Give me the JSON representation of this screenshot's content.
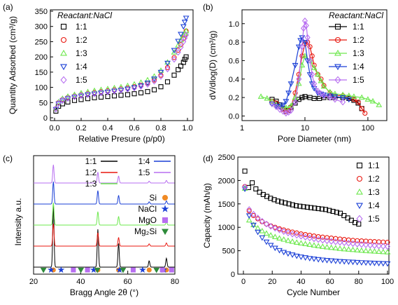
{
  "chart_data": [
    {
      "panel_label": "(a)",
      "type": "scatter",
      "xlabel": "Relative Presure (p/p0)",
      "ylabel": "Quantity Adsorbed (cm³/g)",
      "xlim": [
        0,
        1.0
      ],
      "ylim": [
        0,
        350
      ],
      "xticks": [
        "0.0",
        "0.2",
        "0.4",
        "0.6",
        "0.8",
        "1.0"
      ],
      "yticks": [
        "0",
        "50",
        "100",
        "150",
        "200",
        "250",
        "300",
        "350"
      ],
      "legend_title": "Reactant:NaCl",
      "legend_position": "top-left",
      "series": [
        {
          "name": "1:1",
          "color": "#000000",
          "marker": "square",
          "x": [
            0.01,
            0.03,
            0.06,
            0.1,
            0.15,
            0.2,
            0.25,
            0.3,
            0.35,
            0.4,
            0.45,
            0.5,
            0.55,
            0.6,
            0.65,
            0.7,
            0.75,
            0.8,
            0.85,
            0.9,
            0.93,
            0.95,
            0.97,
            0.98,
            0.99
          ],
          "y": [
            22,
            38,
            46,
            52,
            57,
            60,
            63,
            66,
            68,
            70,
            72,
            74,
            76,
            79,
            82,
            86,
            92,
            102,
            118,
            140,
            158,
            170,
            182,
            192,
            200
          ]
        },
        {
          "name": "1:2",
          "color": "#e8170f",
          "marker": "circle",
          "x": [
            0.01,
            0.03,
            0.06,
            0.1,
            0.15,
            0.2,
            0.25,
            0.3,
            0.35,
            0.4,
            0.45,
            0.5,
            0.55,
            0.6,
            0.65,
            0.7,
            0.75,
            0.8,
            0.85,
            0.9,
            0.93,
            0.95,
            0.97,
            0.98,
            0.99
          ],
          "y": [
            30,
            50,
            60,
            67,
            72,
            76,
            80,
            83,
            86,
            89,
            92,
            95,
            98,
            102,
            107,
            114,
            124,
            140,
            165,
            198,
            222,
            240,
            260,
            272,
            285
          ]
        },
        {
          "name": "1:3",
          "color": "#6ee84e",
          "marker": "triangle-up",
          "x": [
            0.01,
            0.03,
            0.06,
            0.1,
            0.15,
            0.2,
            0.25,
            0.3,
            0.35,
            0.4,
            0.45,
            0.5,
            0.55,
            0.6,
            0.65,
            0.7,
            0.75,
            0.8,
            0.85,
            0.9,
            0.93,
            0.95,
            0.97,
            0.98,
            0.99
          ],
          "y": [
            32,
            52,
            63,
            70,
            76,
            81,
            85,
            89,
            92,
            95,
            98,
            101,
            105,
            110,
            116,
            124,
            136,
            155,
            182,
            215,
            238,
            255,
            270,
            278,
            285
          ]
        },
        {
          "name": "1:4",
          "color": "#1a3fd6",
          "marker": "triangle-down",
          "x": [
            0.01,
            0.03,
            0.06,
            0.1,
            0.15,
            0.2,
            0.25,
            0.3,
            0.35,
            0.4,
            0.45,
            0.5,
            0.55,
            0.6,
            0.65,
            0.7,
            0.75,
            0.8,
            0.85,
            0.9,
            0.93,
            0.95,
            0.97,
            0.98,
            0.99
          ],
          "y": [
            28,
            46,
            56,
            63,
            68,
            72,
            76,
            79,
            82,
            85,
            88,
            91,
            95,
            100,
            106,
            115,
            128,
            150,
            180,
            222,
            252,
            275,
            300,
            315,
            328
          ]
        },
        {
          "name": "1:5",
          "color": "#b76ef0",
          "marker": "diamond",
          "x": [
            0.01,
            0.03,
            0.06,
            0.1,
            0.15,
            0.2,
            0.25,
            0.3,
            0.35,
            0.4,
            0.45,
            0.5,
            0.55,
            0.6,
            0.65,
            0.7,
            0.75,
            0.8,
            0.85,
            0.9,
            0.93,
            0.95,
            0.97,
            0.98,
            0.99
          ],
          "y": [
            30,
            48,
            58,
            64,
            69,
            73,
            76,
            79,
            82,
            85,
            88,
            91,
            94,
            98,
            103,
            110,
            120,
            136,
            160,
            192,
            215,
            232,
            250,
            262,
            272
          ]
        }
      ]
    },
    {
      "panel_label": "(b)",
      "type": "line",
      "xscale": "log",
      "xlabel": "Pore Diameter (nm)",
      "ylabel": "dV/dlog(D) (cm³/g)",
      "xlim": [
        1,
        200
      ],
      "ylim": [
        -0.05,
        1.15
      ],
      "xticks": [
        "1",
        "10",
        "100"
      ],
      "yticks": [
        "0.0",
        "0.2",
        "0.4",
        "0.6",
        "0.8",
        "1.0"
      ],
      "legend_title": "Reactant:NaCl",
      "legend_position": "top-right",
      "series": [
        {
          "name": "1:1",
          "color": "#000000",
          "marker": "square",
          "x": [
            3,
            3.5,
            4,
            4.5,
            5,
            5.5,
            6,
            7,
            8,
            9,
            10,
            12,
            14,
            17,
            20,
            25,
            30,
            40,
            50,
            60,
            70,
            80
          ],
          "y": [
            0.18,
            0.16,
            0.12,
            0.08,
            0.05,
            0.06,
            0.09,
            0.14,
            0.18,
            0.2,
            0.21,
            0.2,
            0.19,
            0.19,
            0.2,
            0.2,
            0.2,
            0.2,
            0.19,
            0.17,
            0.14,
            0.08
          ]
        },
        {
          "name": "1:2",
          "color": "#e8170f",
          "marker": "circle",
          "x": [
            3,
            3.5,
            4,
            4.5,
            5,
            5.5,
            6,
            7,
            8,
            9,
            10,
            11,
            12,
            13,
            14,
            16,
            18,
            20,
            25,
            30,
            40,
            50,
            60,
            70,
            80,
            90
          ],
          "y": [
            0.16,
            0.14,
            0.1,
            0.07,
            0.05,
            0.06,
            0.1,
            0.25,
            0.45,
            0.65,
            0.78,
            0.8,
            0.75,
            0.65,
            0.55,
            0.45,
            0.4,
            0.33,
            0.25,
            0.22,
            0.22,
            0.2,
            0.18,
            0.15,
            0.08,
            0.03
          ]
        },
        {
          "name": "1:3",
          "color": "#6ee84e",
          "marker": "triangle-up",
          "x": [
            2,
            2.5,
            3,
            3.5,
            4,
            5,
            6,
            7,
            8,
            9,
            10,
            12,
            14,
            16,
            18,
            20,
            25,
            30,
            40,
            50,
            60,
            80,
            100,
            120,
            150
          ],
          "y": [
            0.21,
            0.19,
            0.16,
            0.12,
            0.1,
            0.09,
            0.11,
            0.2,
            0.35,
            0.55,
            0.65,
            0.6,
            0.52,
            0.45,
            0.38,
            0.32,
            0.26,
            0.24,
            0.23,
            0.22,
            0.21,
            0.2,
            0.18,
            0.16,
            0.12
          ]
        },
        {
          "name": "1:4",
          "color": "#1a3fd6",
          "marker": "triangle-down",
          "x": [
            3,
            3.5,
            4,
            4.5,
            5,
            5.5,
            6,
            7,
            8,
            8.5,
            9,
            10,
            11,
            12,
            13,
            14,
            16,
            18,
            20,
            25,
            30,
            40,
            50
          ],
          "y": [
            0.13,
            0.11,
            0.1,
            0.12,
            0.16,
            0.25,
            0.35,
            0.55,
            0.75,
            0.82,
            0.85,
            0.8,
            0.6,
            0.45,
            0.35,
            0.3,
            0.25,
            0.24,
            0.23,
            0.22,
            0.21,
            0.2,
            0.18
          ]
        },
        {
          "name": "1:5",
          "color": "#b76ef0",
          "marker": "diamond",
          "x": [
            3,
            3.5,
            4,
            4.5,
            5,
            5.5,
            6,
            7,
            8,
            9,
            9.5,
            10,
            10.5,
            11,
            12,
            13,
            14,
            16,
            18,
            20,
            25,
            30,
            40
          ],
          "y": [
            0.13,
            0.1,
            0.07,
            0.05,
            0.03,
            0.04,
            0.06,
            0.15,
            0.4,
            0.75,
            0.95,
            1.03,
            0.98,
            0.85,
            0.6,
            0.45,
            0.35,
            0.27,
            0.24,
            0.22,
            0.2,
            0.18,
            0.15
          ]
        }
      ]
    },
    {
      "panel_label": "(c)",
      "type": "line",
      "xlabel": "Bragg Angle 2θ (°)",
      "ylabel": "Intensity a.u.",
      "xlim": [
        20,
        80
      ],
      "xticks": [
        "20",
        "40",
        "60",
        "80"
      ],
      "legend_position": "top-right",
      "peaks": [
        {
          "x": 28.4,
          "height": 1.0
        },
        {
          "x": 47.3,
          "height": 0.6
        },
        {
          "x": 56.1,
          "height": 0.38
        },
        {
          "x": 69.1,
          "height": 0.1
        },
        {
          "x": 76.4,
          "height": 0.14
        }
      ],
      "series": [
        {
          "name": "1:1",
          "color": "#000000",
          "offset": 0
        },
        {
          "name": "1:2",
          "color": "#e8170f",
          "offset": 1
        },
        {
          "name": "1:3",
          "color": "#6ee84e",
          "offset": 2
        },
        {
          "name": "1:4",
          "color": "#1a3fd6",
          "offset": 3
        },
        {
          "name": "1:5",
          "color": "#b76ef0",
          "offset": 4
        }
      ],
      "phase_markers": [
        {
          "name": "Si",
          "color": "#f08a24",
          "marker": "circle",
          "x": [
            28.4,
            47.3,
            56.1,
            69.1,
            76.4
          ]
        },
        {
          "name": "NaCl",
          "color": "#1a3fd6",
          "marker": "star",
          "x": [
            27.4,
            31.7,
            45.5,
            56.5,
            66.3,
            75.3
          ]
        },
        {
          "name": "MgO",
          "color": "#b76ef0",
          "marker": "square",
          "x": [
            36.9,
            42.9,
            62.3,
            74.7,
            78.6
          ]
        },
        {
          "name": "Mg₂Si",
          "color": "#2e8b3a",
          "marker": "triangle-down",
          "x": [
            24.2,
            40.1,
            47.1,
            58.0,
            72.2
          ]
        }
      ]
    },
    {
      "panel_label": "(d)",
      "type": "scatter",
      "xlabel": "Cycle Number",
      "ylabel": "Capacity (mAh/g)",
      "xlim": [
        0,
        100
      ],
      "ylim": [
        0,
        2500
      ],
      "xticks": [
        "0",
        "20",
        "40",
        "60",
        "80",
        "100"
      ],
      "yticks": [
        "0",
        "500",
        "1000",
        "1500",
        "2000",
        "2500"
      ],
      "legend_position": "top-right",
      "series": [
        {
          "name": "1:1",
          "color": "#000000",
          "marker": "square",
          "cycles": [
            1,
            80
          ],
          "y": [
            2200,
            1850,
            1950,
            1820,
            1750,
            1700,
            1660,
            1620,
            1590,
            1560,
            1540,
            1520,
            1500,
            1480,
            1460,
            1450,
            1440,
            1430,
            1420,
            1410,
            1400,
            1390,
            1380,
            1360,
            1340,
            1320,
            1300,
            1250,
            1200,
            1150,
            1100,
            1070
          ]
        },
        {
          "name": "1:2",
          "color": "#e8170f",
          "marker": "circle",
          "cycles": [
            1,
            100
          ],
          "y": [
            1870,
            1350,
            1250,
            1180,
            1120,
            1070,
            1030,
            1000,
            970,
            945,
            920,
            900,
            880,
            860,
            845,
            830,
            815,
            800,
            790,
            780,
            770,
            760,
            750,
            740,
            730,
            722,
            715,
            710,
            705,
            700,
            695,
            690,
            685,
            680
          ]
        },
        {
          "name": "1:3",
          "color": "#6ee84e",
          "marker": "triangle-up",
          "cycles": [
            1,
            100
          ],
          "y": [
            1830,
            1150,
            1050,
            980,
            920,
            870,
            830,
            795,
            765,
            740,
            715,
            695,
            675,
            660,
            645,
            630,
            615,
            600,
            588,
            576,
            565,
            555,
            545,
            535,
            527,
            520,
            512,
            505,
            498,
            492,
            486,
            480,
            475,
            470
          ]
        },
        {
          "name": "1:4",
          "color": "#1a3fd6",
          "marker": "triangle-down",
          "cycles": [
            1,
            100
          ],
          "y": [
            1820,
            1250,
            1050,
            900,
            780,
            690,
            620,
            560,
            510,
            470,
            440,
            415,
            390,
            370,
            355,
            340,
            328,
            316,
            306,
            298,
            290,
            282,
            276,
            270,
            265,
            260,
            255,
            250,
            246,
            242,
            238,
            234,
            230,
            226
          ]
        },
        {
          "name": "1:5",
          "color": "#b76ef0",
          "marker": "diamond",
          "cycles": [
            1,
            100
          ],
          "y": [
            1860,
            1380,
            1280,
            1200,
            1130,
            1070,
            1020,
            980,
            945,
            910,
            880,
            855,
            830,
            810,
            790,
            772,
            755,
            740,
            725,
            712,
            700,
            690,
            680,
            670,
            660,
            651,
            642,
            634,
            626,
            618,
            610,
            603,
            596,
            590
          ]
        }
      ]
    }
  ]
}
